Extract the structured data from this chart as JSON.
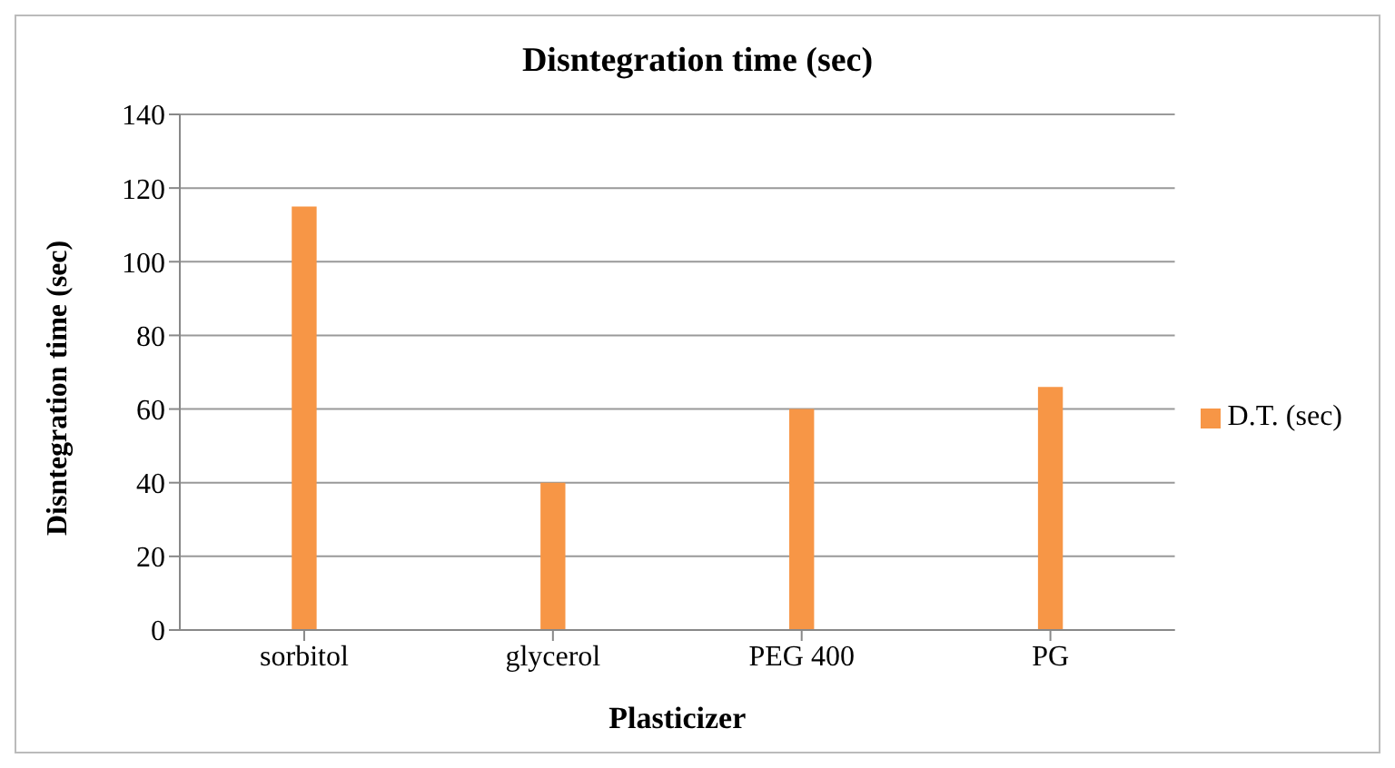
{
  "chart_data": {
    "type": "bar",
    "title": "Disntegration time (sec)",
    "xlabel": "Plasticizer",
    "ylabel": "Disntegration time (sec)",
    "categories": [
      "sorbitol",
      "glycerol",
      "PEG 400",
      "PG"
    ],
    "series": [
      {
        "name": "D.T. (sec)",
        "color": "#f79646",
        "values": [
          115,
          40,
          60,
          66
        ]
      }
    ],
    "ylim": [
      0,
      140
    ],
    "yticks": [
      0,
      20,
      40,
      60,
      80,
      100,
      120,
      140
    ],
    "grid": "y",
    "legend": "right"
  }
}
